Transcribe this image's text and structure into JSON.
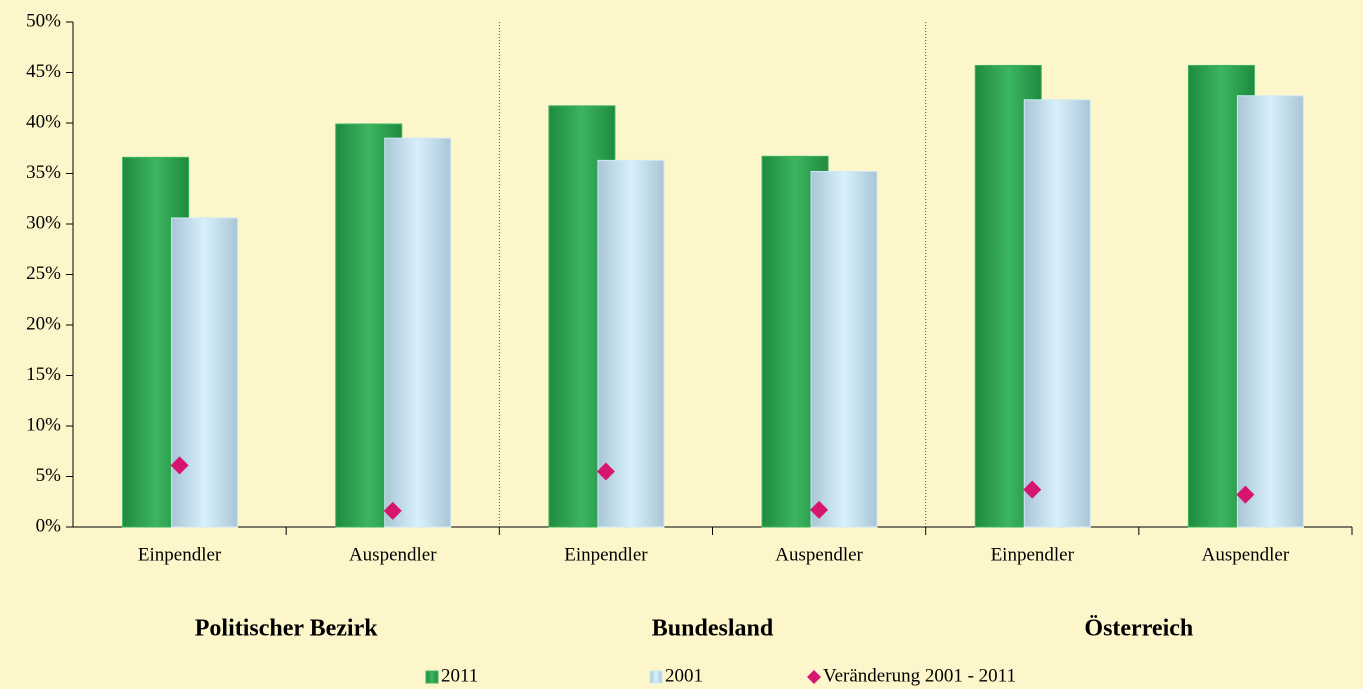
{
  "chart_data": {
    "type": "bar",
    "categories": [
      "Einpendler",
      "Auspendler",
      "Einpendler",
      "Auspendler",
      "Einpendler",
      "Auspendler"
    ],
    "group_labels": [
      "Politischer Bezirk",
      "Bundesland",
      "Österreich"
    ],
    "series": [
      {
        "name": "2011",
        "color": "#3cb560",
        "values": [
          36.6,
          39.9,
          41.7,
          36.7,
          45.7,
          45.7
        ]
      },
      {
        "name": "2001",
        "color": "#cfe9f6",
        "values": [
          30.6,
          38.5,
          36.3,
          35.2,
          42.3,
          42.7
        ]
      },
      {
        "name": "Veränderung 2001 - 2011",
        "type": "scatter",
        "color": "#d6166e",
        "values": [
          6.1,
          1.6,
          5.5,
          1.7,
          3.7,
          3.2
        ]
      }
    ],
    "ylim": [
      0,
      50
    ],
    "yticks": [
      {
        "value": 0,
        "label": "0%"
      },
      {
        "value": 5,
        "label": "5%"
      },
      {
        "value": 10,
        "label": "10%"
      },
      {
        "value": 15,
        "label": "15%"
      },
      {
        "value": 20,
        "label": "20%"
      },
      {
        "value": 25,
        "label": "25%"
      },
      {
        "value": 30,
        "label": "30%"
      },
      {
        "value": 35,
        "label": "35%"
      },
      {
        "value": 40,
        "label": "40%"
      },
      {
        "value": 45,
        "label": "45%"
      },
      {
        "value": 50,
        "label": "50%"
      }
    ],
    "grid": false
  }
}
